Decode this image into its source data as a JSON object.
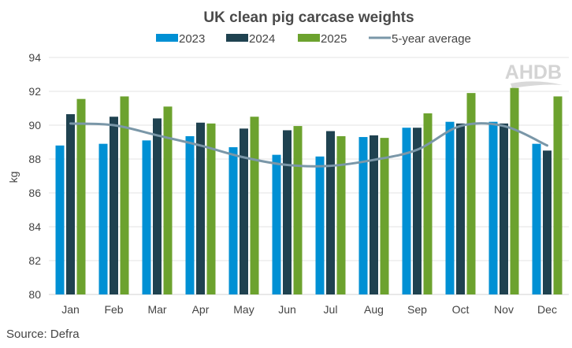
{
  "chart_data": {
    "type": "bar",
    "title": "UK clean pig carcase weights",
    "xlabel": "",
    "ylabel": "kg",
    "ylim": [
      80,
      94
    ],
    "yticks": [
      80,
      82,
      84,
      86,
      88,
      90,
      92,
      94
    ],
    "grid": true,
    "legend_position": "top",
    "categories": [
      "Jan",
      "Feb",
      "Mar",
      "Apr",
      "May",
      "Jun",
      "Jul",
      "Aug",
      "Sep",
      "Oct",
      "Nov",
      "Dec"
    ],
    "series": [
      {
        "name": "2023",
        "kind": "bar",
        "color": "#0090D4",
        "values": [
          88.8,
          88.9,
          89.1,
          89.35,
          88.7,
          88.25,
          88.15,
          89.3,
          89.85,
          90.2,
          90.2,
          88.9
        ]
      },
      {
        "name": "2024",
        "kind": "bar",
        "color": "#1F4250",
        "values": [
          90.65,
          90.5,
          90.4,
          90.15,
          89.8,
          89.7,
          89.65,
          89.4,
          89.85,
          90.1,
          90.1,
          88.5
        ]
      },
      {
        "name": "2025",
        "kind": "bar",
        "color": "#6CA22E",
        "values": [
          91.55,
          91.7,
          91.1,
          90.1,
          90.5,
          89.95,
          89.35,
          89.25,
          90.7,
          91.9,
          92.2,
          91.7
        ]
      },
      {
        "name": "5-year average",
        "kind": "line",
        "color": "#7A97A8",
        "values": [
          90.1,
          90.0,
          89.4,
          88.8,
          88.1,
          87.65,
          87.6,
          87.95,
          88.55,
          89.95,
          89.95,
          88.8
        ]
      }
    ],
    "source": "Source: Defra",
    "watermark": "AHDB"
  }
}
